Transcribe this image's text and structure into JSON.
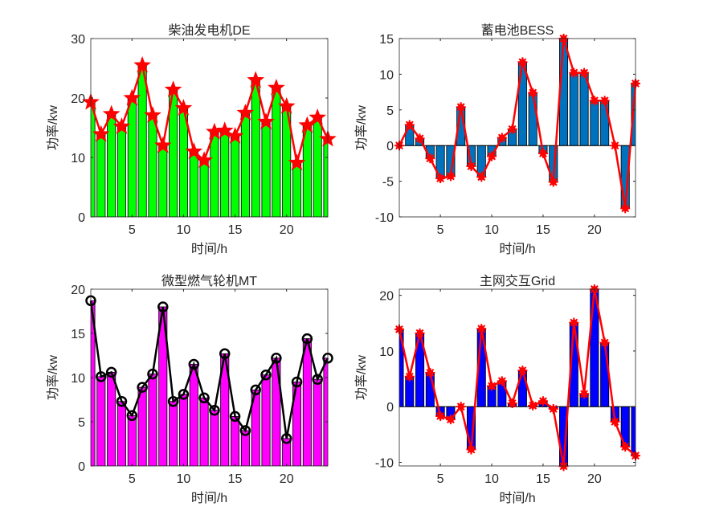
{
  "chart_data": [
    {
      "type": "bar",
      "title": "柴油发电机DE",
      "xlabel": "时间/h",
      "ylabel": "功率/kw",
      "xlim": [
        1,
        24
      ],
      "ylim": [
        0,
        30
      ],
      "xticks": [
        5,
        10,
        15,
        20
      ],
      "yticks": [
        0,
        10,
        20,
        30
      ],
      "bar_color": "#00ff00",
      "line_color": "#ff0000",
      "marker": "star",
      "x": [
        1,
        2,
        3,
        4,
        5,
        6,
        7,
        8,
        9,
        10,
        11,
        12,
        13,
        14,
        15,
        16,
        17,
        18,
        19,
        20,
        21,
        22,
        23,
        24
      ],
      "values": [
        19.3,
        13.9,
        17.3,
        15.2,
        20.0,
        25.5,
        17.1,
        12.0,
        21.4,
        18.3,
        11.0,
        9.5,
        14.3,
        14.5,
        13.6,
        17.5,
        23.0,
        16.0,
        21.7,
        18.6,
        9.1,
        15.4,
        16.7,
        13.1
      ]
    },
    {
      "type": "bar",
      "title": "蓄电池BESS",
      "xlabel": "时间/h",
      "ylabel": "功率/kw",
      "xlim": [
        1,
        24
      ],
      "ylim": [
        -10,
        15
      ],
      "xticks": [
        5,
        10,
        15,
        20
      ],
      "yticks": [
        -10,
        -5,
        0,
        5,
        10,
        15
      ],
      "bar_color": "#0072bd",
      "line_color": "#ff0000",
      "marker": "asterisk",
      "x": [
        1,
        2,
        3,
        4,
        5,
        6,
        7,
        8,
        9,
        10,
        11,
        12,
        13,
        14,
        15,
        16,
        17,
        18,
        19,
        20,
        21,
        22,
        23,
        24
      ],
      "values": [
        0,
        2.9,
        1.0,
        -1.8,
        -4.6,
        -4.3,
        5.4,
        -2.9,
        -4.4,
        -1.5,
        1.1,
        2.3,
        11.7,
        7.4,
        -1.1,
        -5.1,
        15.0,
        10.2,
        10.2,
        6.3,
        6.3,
        0,
        -8.8,
        8.7
      ]
    },
    {
      "type": "bar",
      "title": "微型燃气轮机MT",
      "xlabel": "时间/h",
      "ylabel": "功率/kw",
      "xlim": [
        1,
        24
      ],
      "ylim": [
        0,
        20
      ],
      "xticks": [
        5,
        10,
        15,
        20
      ],
      "yticks": [
        0,
        5,
        10,
        15,
        20
      ],
      "bar_color": "#ff00ff",
      "line_color": "#000000",
      "marker": "circle",
      "x": [
        1,
        2,
        3,
        4,
        5,
        6,
        7,
        8,
        9,
        10,
        11,
        12,
        13,
        14,
        15,
        16,
        17,
        18,
        19,
        20,
        21,
        22,
        23,
        24
      ],
      "values": [
        18.7,
        10.1,
        10.6,
        7.3,
        5.7,
        8.9,
        10.4,
        18.0,
        7.3,
        8.1,
        11.5,
        7.7,
        6.3,
        12.7,
        5.6,
        4.0,
        8.6,
        10.3,
        12.2,
        3.1,
        9.5,
        14.4,
        9.8,
        12.2
      ]
    },
    {
      "type": "bar",
      "title": "主网交互Grid",
      "xlabel": "时间/h",
      "ylabel": "功率/kw",
      "xlim": [
        1,
        24
      ],
      "ylim": [
        -10.65,
        21.1
      ],
      "xticks": [
        5,
        10,
        15,
        20
      ],
      "yticks": [
        -10,
        0,
        10,
        20
      ],
      "bar_color": "#0000ff",
      "line_color": "#ff0000",
      "marker": "asterisk",
      "x": [
        1,
        2,
        3,
        4,
        5,
        6,
        7,
        8,
        9,
        10,
        11,
        12,
        13,
        14,
        15,
        16,
        17,
        18,
        19,
        20,
        21,
        22,
        23,
        24
      ],
      "values": [
        13.9,
        5.4,
        13.2,
        6.1,
        -1.7,
        -2.3,
        0,
        -7.7,
        14.0,
        3.7,
        4.6,
        0.6,
        6.5,
        0.2,
        1.0,
        -0.4,
        -10.7,
        15.1,
        2.3,
        21.1,
        11.5,
        -2.7,
        -7.2,
        -8.8
      ]
    }
  ]
}
